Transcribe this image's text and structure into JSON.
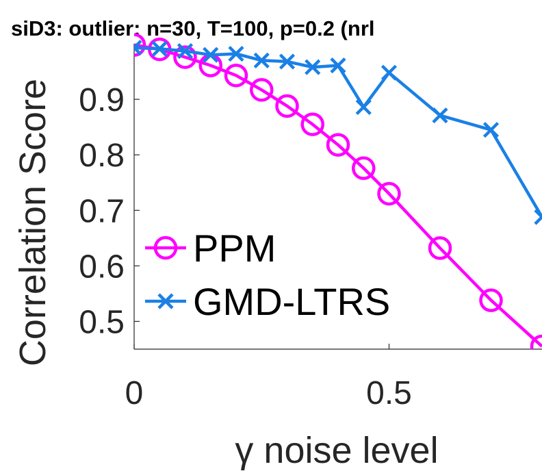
{
  "chart_data": {
    "type": "line",
    "title": "siD3: outlier: n=30, T=100, p=0.2 (nrl",
    "xlabel": "γ noise level",
    "ylabel": "Correlation Score",
    "xlim": [
      0,
      0.8
    ],
    "ylim": [
      0.45,
      1.0
    ],
    "xticks": [
      0,
      0.5
    ],
    "xtick_labels": [
      "0",
      "0.5"
    ],
    "yticks": [
      0.5,
      0.6,
      0.7,
      0.8,
      0.9
    ],
    "ytick_labels": [
      "0.5",
      "0.6",
      "0.7",
      "0.8",
      "0.9"
    ],
    "grid": false,
    "legend_position": "left",
    "series": [
      {
        "name": "PPM",
        "color": "#ff00ff",
        "marker": "circle",
        "x": [
          0,
          0.05,
          0.1,
          0.15,
          0.2,
          0.25,
          0.3,
          0.35,
          0.4,
          0.45,
          0.5,
          0.6,
          0.7,
          0.8
        ],
        "y": [
          0.998,
          0.99,
          0.976,
          0.961,
          0.943,
          0.917,
          0.888,
          0.855,
          0.818,
          0.776,
          0.73,
          0.632,
          0.538,
          0.455
        ]
      },
      {
        "name": "GMD-LTRS",
        "color": "#1a80e6",
        "marker": "x",
        "x": [
          0,
          0.05,
          0.1,
          0.15,
          0.2,
          0.25,
          0.3,
          0.35,
          0.4,
          0.45,
          0.5,
          0.6,
          0.7,
          0.8
        ],
        "y": [
          0.993,
          0.991,
          0.987,
          0.98,
          0.982,
          0.97,
          0.968,
          0.958,
          0.961,
          0.886,
          0.948,
          0.871,
          0.845,
          0.688
        ]
      }
    ]
  }
}
